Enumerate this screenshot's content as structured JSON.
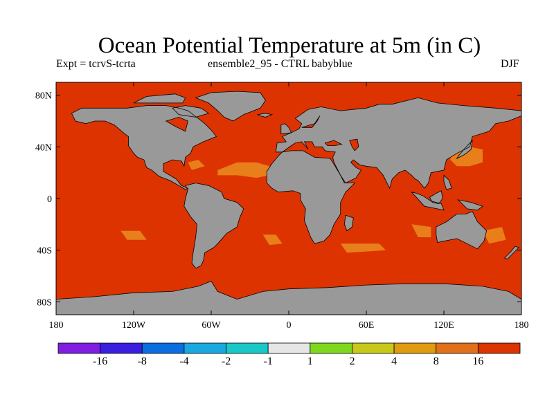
{
  "title": "Ocean Potential Temperature at 5m (in C)",
  "subtitle_left": "Expt = tcrvS-tcrta",
  "subtitle_center": "ensemble2_95 - CTRL babyblue",
  "subtitle_right": "DJF",
  "map": {
    "ocean_color": "#dd3300",
    "land_color": "#999999",
    "warm_patch_color": "#e87f1a",
    "coast_color": "#000000"
  },
  "x_ticks": [
    {
      "lon": -180,
      "label": "180"
    },
    {
      "lon": -120,
      "label": "120W"
    },
    {
      "lon": -60,
      "label": "60W"
    },
    {
      "lon": 0,
      "label": "0"
    },
    {
      "lon": 60,
      "label": "60E"
    },
    {
      "lon": 120,
      "label": "120E"
    },
    {
      "lon": 180,
      "label": "180"
    }
  ],
  "y_ticks": [
    {
      "lat": 80,
      "label": "80N"
    },
    {
      "lat": 40,
      "label": "40N"
    },
    {
      "lat": 0,
      "label": "0"
    },
    {
      "lat": -40,
      "label": "40S"
    },
    {
      "lat": -80,
      "label": "80S"
    }
  ],
  "colorbar": {
    "colors": [
      "#7f1ee0",
      "#3a1ee0",
      "#0a6ee0",
      "#1aa8e0",
      "#1ac8c8",
      "#e6e6e6",
      "#7fd81e",
      "#c8c81a",
      "#e09b10",
      "#e0701a",
      "#dd3300"
    ],
    "labels": [
      "-16",
      "-8",
      "-4",
      "-2",
      "-1",
      "1",
      "2",
      "4",
      "8",
      "16"
    ]
  }
}
